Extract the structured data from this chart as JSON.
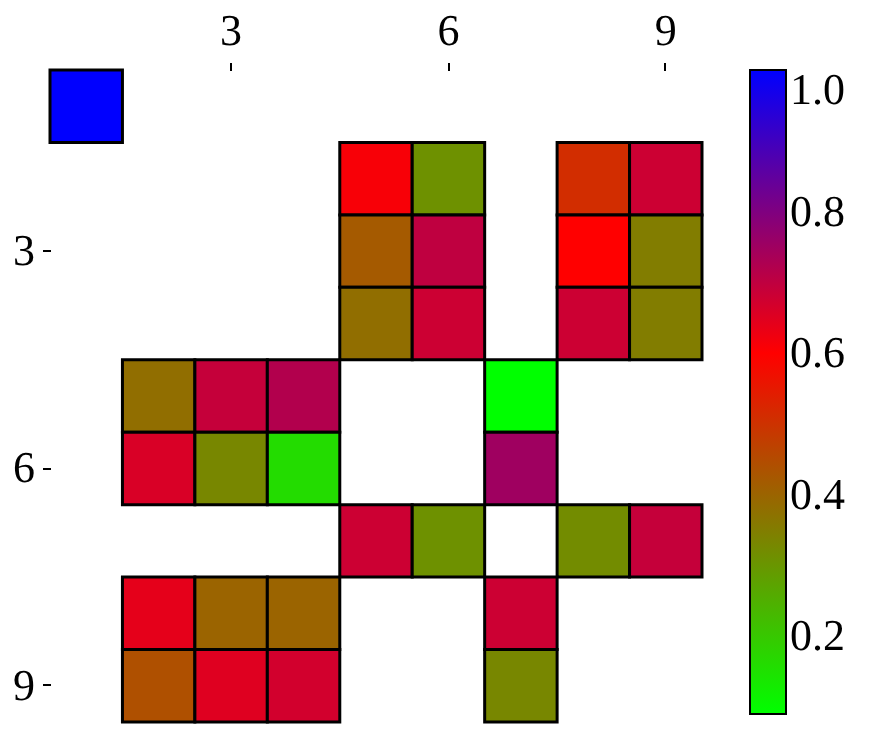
{
  "chart_data": {
    "type": "heatmap",
    "categories": [
      null,
      null,
      "3",
      null,
      null,
      "6",
      null,
      null,
      "9"
    ],
    "y_categories": [
      null,
      null,
      "3",
      null,
      null,
      "6",
      null,
      null,
      "9"
    ],
    "cells": [
      [
        1.0,
        null,
        null,
        null,
        null,
        null,
        null,
        null,
        null
      ],
      [
        null,
        null,
        null,
        null,
        0.61,
        0.31,
        null,
        0.51,
        0.68
      ],
      [
        null,
        null,
        null,
        null,
        0.42,
        0.7,
        null,
        0.6,
        0.35
      ],
      [
        null,
        null,
        null,
        null,
        0.38,
        0.68,
        null,
        0.68,
        0.35
      ],
      [
        null,
        0.38,
        0.69,
        0.72,
        null,
        null,
        0.09,
        null,
        null
      ],
      [
        null,
        0.66,
        0.33,
        0.16,
        null,
        null,
        0.75,
        null,
        null
      ],
      [
        null,
        null,
        null,
        null,
        0.68,
        0.31,
        null,
        0.32,
        0.69
      ],
      [
        null,
        0.64,
        0.4,
        0.4,
        null,
        null,
        0.68,
        null,
        null
      ],
      [
        null,
        0.44,
        0.65,
        0.67,
        null,
        null,
        0.33,
        null,
        null
      ]
    ],
    "clim": [
      0.09,
      1.0
    ],
    "cticks": [
      {
        "value": 0.2,
        "label": "0.2"
      },
      {
        "value": 0.4,
        "label": "0.4"
      },
      {
        "value": 0.6,
        "label": "0.6"
      },
      {
        "value": 0.8,
        "label": "0.8"
      },
      {
        "value": 1.0,
        "label": "1.0"
      }
    ]
  }
}
